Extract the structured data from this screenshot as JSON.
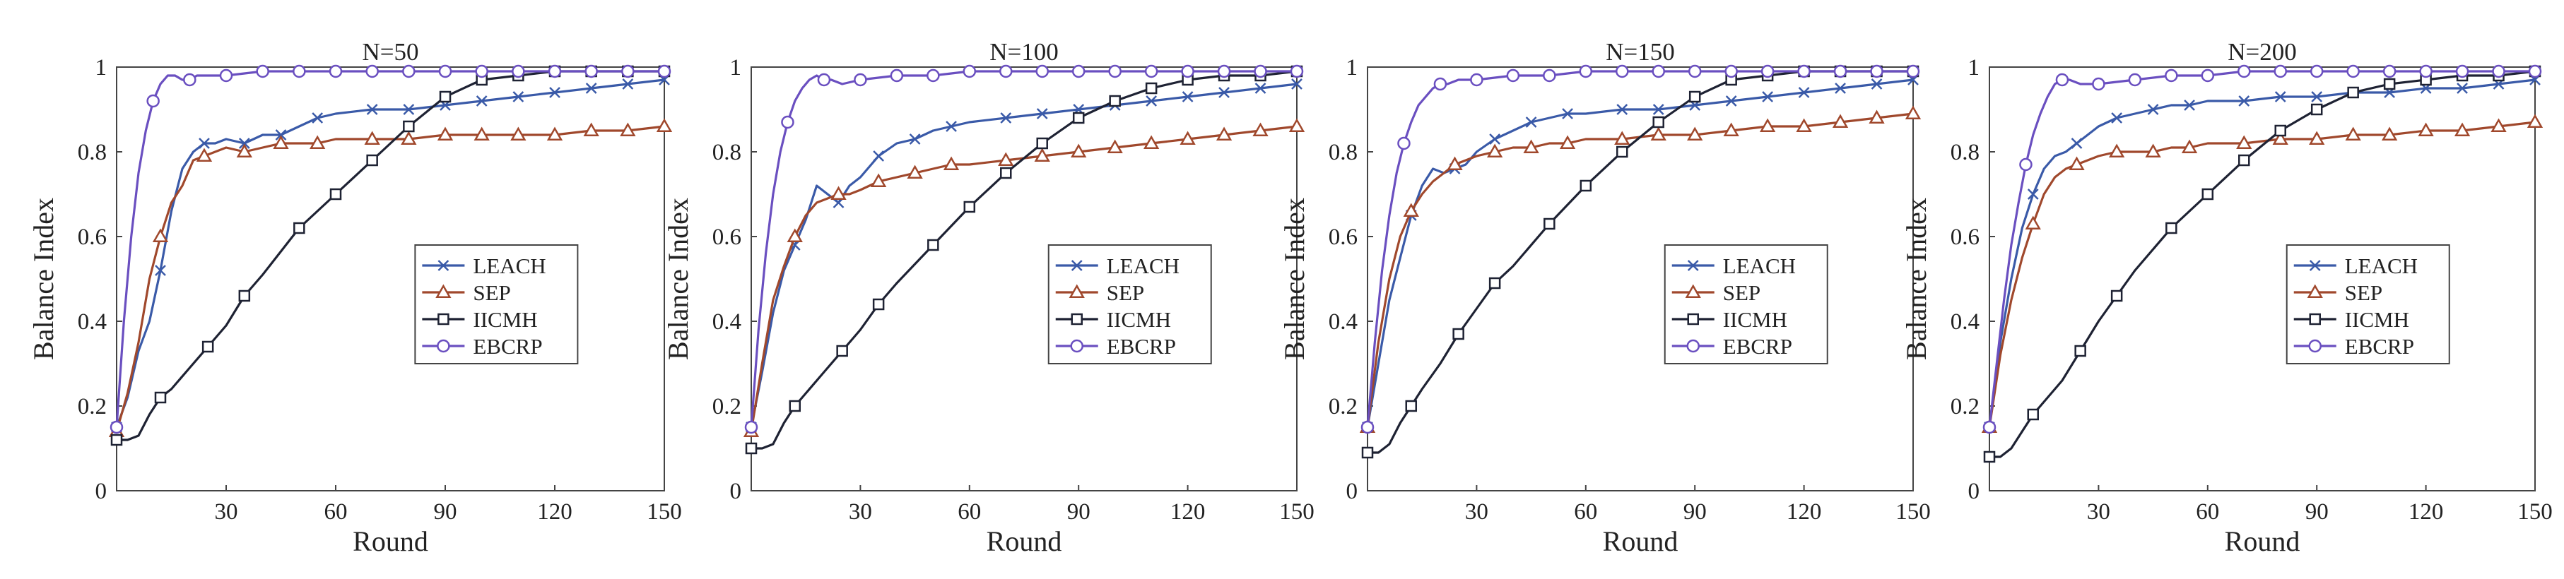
{
  "chart_data": [
    {
      "type": "line",
      "title": "N=50",
      "xlabel": "Round",
      "ylabel": "Balance Index",
      "xlim": [
        0,
        150
      ],
      "ylim": [
        0,
        1
      ],
      "xticks": [
        "30",
        "60",
        "90",
        "120",
        "150"
      ],
      "yticks": [
        "0",
        "0.2",
        "0.4",
        "0.6",
        "0.8",
        "1"
      ],
      "legend_position": "center-right",
      "series": [
        {
          "name": "LEACH",
          "color": "#3a5aa8",
          "marker": "x",
          "x": [
            0,
            3,
            6,
            9,
            12,
            15,
            18,
            21,
            24,
            27,
            30,
            35,
            40,
            45,
            50,
            55,
            60,
            70,
            80,
            90,
            100,
            110,
            120,
            130,
            140,
            150
          ],
          "y": [
            0.15,
            0.22,
            0.33,
            0.4,
            0.52,
            0.66,
            0.76,
            0.8,
            0.82,
            0.82,
            0.83,
            0.82,
            0.84,
            0.84,
            0.86,
            0.88,
            0.89,
            0.9,
            0.9,
            0.91,
            0.92,
            0.93,
            0.94,
            0.95,
            0.96,
            0.97
          ]
        },
        {
          "name": "SEP",
          "color": "#a0482c",
          "marker": "triangle",
          "x": [
            0,
            3,
            6,
            9,
            12,
            15,
            18,
            21,
            24,
            27,
            30,
            35,
            40,
            45,
            50,
            55,
            60,
            70,
            80,
            90,
            100,
            110,
            120,
            130,
            140,
            150
          ],
          "y": [
            0.14,
            0.23,
            0.35,
            0.5,
            0.6,
            0.68,
            0.72,
            0.78,
            0.79,
            0.8,
            0.81,
            0.8,
            0.81,
            0.82,
            0.82,
            0.82,
            0.83,
            0.83,
            0.83,
            0.84,
            0.84,
            0.84,
            0.84,
            0.85,
            0.85,
            0.86
          ]
        },
        {
          "name": "IICMH",
          "color": "#1e2233",
          "marker": "square",
          "x": [
            0,
            3,
            6,
            9,
            12,
            15,
            20,
            25,
            30,
            35,
            40,
            50,
            60,
            70,
            80,
            90,
            100,
            110,
            120,
            130,
            140,
            150
          ],
          "y": [
            0.12,
            0.12,
            0.13,
            0.18,
            0.22,
            0.24,
            0.29,
            0.34,
            0.39,
            0.46,
            0.51,
            0.62,
            0.7,
            0.78,
            0.86,
            0.93,
            0.97,
            0.98,
            0.99,
            0.99,
            0.99,
            0.99
          ]
        },
        {
          "name": "EBCRP",
          "color": "#6a4fc0",
          "marker": "circle",
          "x": [
            0,
            2,
            4,
            6,
            8,
            10,
            12,
            14,
            16,
            18,
            20,
            22,
            25,
            30,
            40,
            50,
            60,
            70,
            80,
            90,
            100,
            110,
            120,
            130,
            140,
            150
          ],
          "y": [
            0.15,
            0.4,
            0.6,
            0.75,
            0.85,
            0.92,
            0.96,
            0.98,
            0.98,
            0.97,
            0.97,
            0.98,
            0.98,
            0.98,
            0.99,
            0.99,
            0.99,
            0.99,
            0.99,
            0.99,
            0.99,
            0.99,
            0.99,
            0.99,
            0.99,
            0.99
          ]
        }
      ]
    },
    {
      "type": "line",
      "title": "N=100",
      "xlabel": "Round",
      "ylabel": "Balance Index",
      "xlim": [
        0,
        150
      ],
      "ylim": [
        0,
        1
      ],
      "xticks": [
        "30",
        "60",
        "90",
        "120",
        "150"
      ],
      "yticks": [
        "0",
        "0.2",
        "0.4",
        "0.6",
        "0.8",
        "1"
      ],
      "legend_position": "center-right",
      "series": [
        {
          "name": "LEACH",
          "color": "#3a5aa8",
          "marker": "x",
          "x": [
            0,
            3,
            6,
            9,
            12,
            15,
            18,
            21,
            24,
            27,
            30,
            35,
            40,
            45,
            50,
            55,
            60,
            70,
            80,
            90,
            100,
            110,
            120,
            130,
            140,
            150
          ],
          "y": [
            0.15,
            0.28,
            0.42,
            0.52,
            0.58,
            0.64,
            0.72,
            0.7,
            0.68,
            0.72,
            0.74,
            0.79,
            0.82,
            0.83,
            0.85,
            0.86,
            0.87,
            0.88,
            0.89,
            0.9,
            0.91,
            0.92,
            0.93,
            0.94,
            0.95,
            0.96
          ]
        },
        {
          "name": "SEP",
          "color": "#a0482c",
          "marker": "triangle",
          "x": [
            0,
            3,
            6,
            9,
            12,
            15,
            18,
            21,
            24,
            27,
            30,
            35,
            40,
            45,
            50,
            55,
            60,
            70,
            80,
            90,
            100,
            110,
            120,
            130,
            140,
            150
          ],
          "y": [
            0.14,
            0.3,
            0.45,
            0.53,
            0.6,
            0.65,
            0.68,
            0.69,
            0.7,
            0.7,
            0.71,
            0.73,
            0.74,
            0.75,
            0.76,
            0.77,
            0.77,
            0.78,
            0.79,
            0.8,
            0.81,
            0.82,
            0.83,
            0.84,
            0.85,
            0.86
          ]
        },
        {
          "name": "IICMH",
          "color": "#1e2233",
          "marker": "square",
          "x": [
            0,
            3,
            6,
            9,
            12,
            15,
            20,
            25,
            30,
            35,
            40,
            50,
            60,
            70,
            80,
            90,
            100,
            110,
            120,
            130,
            140,
            150
          ],
          "y": [
            0.1,
            0.1,
            0.11,
            0.16,
            0.2,
            0.23,
            0.28,
            0.33,
            0.38,
            0.44,
            0.49,
            0.58,
            0.67,
            0.75,
            0.82,
            0.88,
            0.92,
            0.95,
            0.97,
            0.98,
            0.98,
            0.99
          ]
        },
        {
          "name": "EBCRP",
          "color": "#6a4fc0",
          "marker": "circle",
          "x": [
            0,
            2,
            4,
            6,
            8,
            10,
            12,
            14,
            16,
            18,
            20,
            22,
            25,
            30,
            40,
            50,
            60,
            70,
            80,
            90,
            100,
            110,
            120,
            130,
            140,
            150
          ],
          "y": [
            0.15,
            0.38,
            0.56,
            0.7,
            0.8,
            0.87,
            0.92,
            0.95,
            0.97,
            0.98,
            0.97,
            0.97,
            0.96,
            0.97,
            0.98,
            0.98,
            0.99,
            0.99,
            0.99,
            0.99,
            0.99,
            0.99,
            0.99,
            0.99,
            0.99,
            0.99
          ]
        }
      ]
    },
    {
      "type": "line",
      "title": "N=150",
      "xlabel": "Round",
      "ylabel": "Balance Index",
      "xlim": [
        0,
        150
      ],
      "ylim": [
        0,
        1
      ],
      "xticks": [
        "30",
        "60",
        "90",
        "120",
        "150"
      ],
      "yticks": [
        "0",
        "0.2",
        "0.4",
        "0.6",
        "0.8",
        "1"
      ],
      "legend_position": "center-right",
      "series": [
        {
          "name": "LEACH",
          "color": "#3a5aa8",
          "marker": "x",
          "x": [
            0,
            3,
            6,
            9,
            12,
            15,
            18,
            21,
            24,
            27,
            30,
            35,
            40,
            45,
            50,
            55,
            60,
            70,
            80,
            90,
            100,
            110,
            120,
            130,
            140,
            150
          ],
          "y": [
            0.15,
            0.3,
            0.45,
            0.55,
            0.65,
            0.72,
            0.76,
            0.75,
            0.76,
            0.77,
            0.8,
            0.83,
            0.85,
            0.87,
            0.88,
            0.89,
            0.89,
            0.9,
            0.9,
            0.91,
            0.92,
            0.93,
            0.94,
            0.95,
            0.96,
            0.97
          ]
        },
        {
          "name": "SEP",
          "color": "#a0482c",
          "marker": "triangle",
          "x": [
            0,
            3,
            6,
            9,
            12,
            15,
            18,
            21,
            24,
            27,
            30,
            35,
            40,
            45,
            50,
            55,
            60,
            70,
            80,
            90,
            100,
            110,
            120,
            130,
            140,
            150
          ],
          "y": [
            0.15,
            0.35,
            0.5,
            0.6,
            0.66,
            0.7,
            0.73,
            0.75,
            0.77,
            0.78,
            0.79,
            0.8,
            0.81,
            0.81,
            0.82,
            0.82,
            0.83,
            0.83,
            0.84,
            0.84,
            0.85,
            0.86,
            0.86,
            0.87,
            0.88,
            0.89
          ]
        },
        {
          "name": "IICMH",
          "color": "#1e2233",
          "marker": "square",
          "x": [
            0,
            3,
            6,
            9,
            12,
            15,
            20,
            25,
            30,
            35,
            40,
            50,
            60,
            70,
            80,
            90,
            100,
            110,
            120,
            130,
            140,
            150
          ],
          "y": [
            0.09,
            0.09,
            0.11,
            0.16,
            0.2,
            0.24,
            0.3,
            0.37,
            0.43,
            0.49,
            0.53,
            0.63,
            0.72,
            0.8,
            0.87,
            0.93,
            0.97,
            0.98,
            0.99,
            0.99,
            0.99,
            0.99
          ]
        },
        {
          "name": "EBCRP",
          "color": "#6a4fc0",
          "marker": "circle",
          "x": [
            0,
            2,
            4,
            6,
            8,
            10,
            12,
            14,
            16,
            18,
            20,
            22,
            25,
            30,
            40,
            50,
            60,
            70,
            80,
            90,
            100,
            110,
            120,
            130,
            140,
            150
          ],
          "y": [
            0.15,
            0.35,
            0.52,
            0.65,
            0.75,
            0.82,
            0.87,
            0.91,
            0.93,
            0.95,
            0.96,
            0.96,
            0.97,
            0.97,
            0.98,
            0.98,
            0.99,
            0.99,
            0.99,
            0.99,
            0.99,
            0.99,
            0.99,
            0.99,
            0.99,
            0.99
          ]
        }
      ]
    },
    {
      "type": "line",
      "title": "N=200",
      "xlabel": "Round",
      "ylabel": "Balance Index",
      "xlim": [
        0,
        150
      ],
      "ylim": [
        0,
        1
      ],
      "xticks": [
        "30",
        "60",
        "90",
        "120",
        "150"
      ],
      "yticks": [
        "0",
        "0.2",
        "0.4",
        "0.6",
        "0.8",
        "1"
      ],
      "legend_position": "center-right",
      "series": [
        {
          "name": "LEACH",
          "color": "#3a5aa8",
          "marker": "x",
          "x": [
            0,
            3,
            6,
            9,
            12,
            15,
            18,
            21,
            24,
            27,
            30,
            35,
            40,
            45,
            50,
            55,
            60,
            70,
            80,
            90,
            100,
            110,
            120,
            130,
            140,
            150
          ],
          "y": [
            0.15,
            0.35,
            0.5,
            0.62,
            0.7,
            0.76,
            0.79,
            0.8,
            0.82,
            0.84,
            0.86,
            0.88,
            0.89,
            0.9,
            0.91,
            0.91,
            0.92,
            0.92,
            0.93,
            0.93,
            0.94,
            0.94,
            0.95,
            0.95,
            0.96,
            0.97
          ]
        },
        {
          "name": "SEP",
          "color": "#a0482c",
          "marker": "triangle",
          "x": [
            0,
            3,
            6,
            9,
            12,
            15,
            18,
            21,
            24,
            27,
            30,
            35,
            40,
            45,
            50,
            55,
            60,
            70,
            80,
            90,
            100,
            110,
            120,
            130,
            140,
            150
          ],
          "y": [
            0.15,
            0.32,
            0.45,
            0.55,
            0.63,
            0.7,
            0.74,
            0.76,
            0.77,
            0.78,
            0.79,
            0.8,
            0.8,
            0.8,
            0.81,
            0.81,
            0.82,
            0.82,
            0.83,
            0.83,
            0.84,
            0.84,
            0.85,
            0.85,
            0.86,
            0.87
          ]
        },
        {
          "name": "IICMH",
          "color": "#1e2233",
          "marker": "square",
          "x": [
            0,
            3,
            6,
            9,
            12,
            15,
            20,
            25,
            30,
            35,
            40,
            50,
            60,
            70,
            80,
            90,
            100,
            110,
            120,
            130,
            140,
            150
          ],
          "y": [
            0.08,
            0.08,
            0.1,
            0.14,
            0.18,
            0.21,
            0.26,
            0.33,
            0.4,
            0.46,
            0.52,
            0.62,
            0.7,
            0.78,
            0.85,
            0.9,
            0.94,
            0.96,
            0.97,
            0.98,
            0.98,
            0.99
          ]
        },
        {
          "name": "EBCRP",
          "color": "#6a4fc0",
          "marker": "circle",
          "x": [
            0,
            2,
            4,
            6,
            8,
            10,
            12,
            14,
            16,
            18,
            20,
            22,
            25,
            30,
            40,
            50,
            60,
            70,
            80,
            90,
            100,
            110,
            120,
            130,
            140,
            150
          ],
          "y": [
            0.15,
            0.3,
            0.45,
            0.58,
            0.68,
            0.77,
            0.84,
            0.89,
            0.93,
            0.96,
            0.97,
            0.97,
            0.96,
            0.96,
            0.97,
            0.98,
            0.98,
            0.99,
            0.99,
            0.99,
            0.99,
            0.99,
            0.99,
            0.99,
            0.99,
            0.99
          ]
        }
      ]
    }
  ]
}
